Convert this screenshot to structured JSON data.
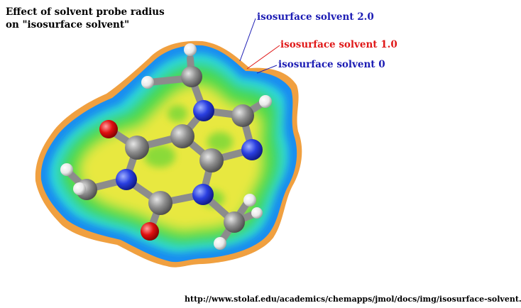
{
  "title": {
    "line1": "Effect of solvent probe radius",
    "line2": "on \"isosurface solvent\""
  },
  "labels": [
    {
      "text": "isosurface solvent 2.0",
      "color": "#1c1cb4"
    },
    {
      "text": "isosurface solvent 1.0",
      "color": "#e01818"
    },
    {
      "text": "isosurface solvent 0",
      "color": "#1c1cb4"
    }
  ],
  "source_url": "http://www.stolaf.edu/academics/chemapps/jmol/docs/img/isosurface-solvent.jpg",
  "colors": {
    "carbon": "#8c8c8c",
    "nitrogen": "#2a3fe0",
    "oxygen": "#e01010",
    "hydrogen": "#f2f2f2"
  }
}
